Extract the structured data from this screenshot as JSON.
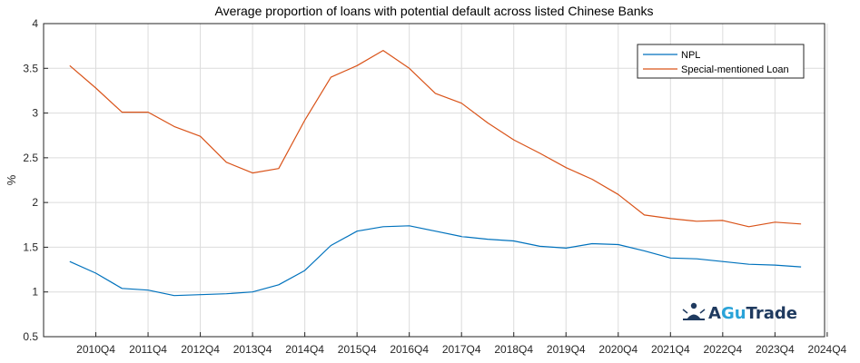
{
  "chart_data": {
    "type": "line",
    "title": "Average proportion of loans with potential default across listed Chinese Banks",
    "xlabel": "",
    "ylabel": "%",
    "ylim": [
      0.5,
      4
    ],
    "yticks": [
      "0.5",
      "1",
      "1.5",
      "2",
      "2.5",
      "3",
      "3.5",
      "4"
    ],
    "xticks": [
      "2010Q4",
      "2011Q4",
      "2012Q4",
      "2013Q4",
      "2014Q4",
      "2015Q4",
      "2016Q4",
      "2017Q4",
      "2018Q4",
      "2019Q4",
      "2020Q4",
      "2021Q4",
      "2022Q4",
      "2023Q4",
      "2024Q4"
    ],
    "grid": true,
    "legend_position": "top-right",
    "x": [
      2010.0,
      2010.5,
      2011.0,
      2011.5,
      2012.0,
      2012.5,
      2013.0,
      2013.5,
      2014.0,
      2014.5,
      2015.0,
      2015.5,
      2016.0,
      2016.5,
      2017.0,
      2017.5,
      2018.0,
      2018.5,
      2019.0,
      2019.5,
      2020.0,
      2020.5,
      2021.0,
      2021.5,
      2022.0,
      2022.5,
      2023.0,
      2023.5,
      2024.0
    ],
    "series": [
      {
        "name": "NPL",
        "color": "#0072BD",
        "values": [
          1.34,
          1.21,
          1.04,
          1.02,
          0.96,
          0.97,
          0.98,
          1.0,
          1.08,
          1.24,
          1.52,
          1.68,
          1.73,
          1.74,
          1.68,
          1.62,
          1.59,
          1.57,
          1.51,
          1.49,
          1.54,
          1.53,
          1.46,
          1.38,
          1.37,
          1.34,
          1.31,
          1.3,
          1.28
        ]
      },
      {
        "name": "Special-mentioned Loan",
        "color": "#D95319",
        "values": [
          3.53,
          3.28,
          3.01,
          3.01,
          2.85,
          2.74,
          2.45,
          2.33,
          2.38,
          2.92,
          3.4,
          3.53,
          3.7,
          3.5,
          3.22,
          3.11,
          2.89,
          2.7,
          2.55,
          2.39,
          2.26,
          2.09,
          1.86,
          1.82,
          1.79,
          1.8,
          1.73,
          1.78,
          1.76
        ]
      }
    ]
  },
  "logo": {
    "text_a": "A",
    "text_gu": "Gu",
    "text_trade": "Trade",
    "icon": "meditation-figure-icon",
    "color_dark": "#1f3a5f",
    "color_accent": "#2aa3d8"
  }
}
